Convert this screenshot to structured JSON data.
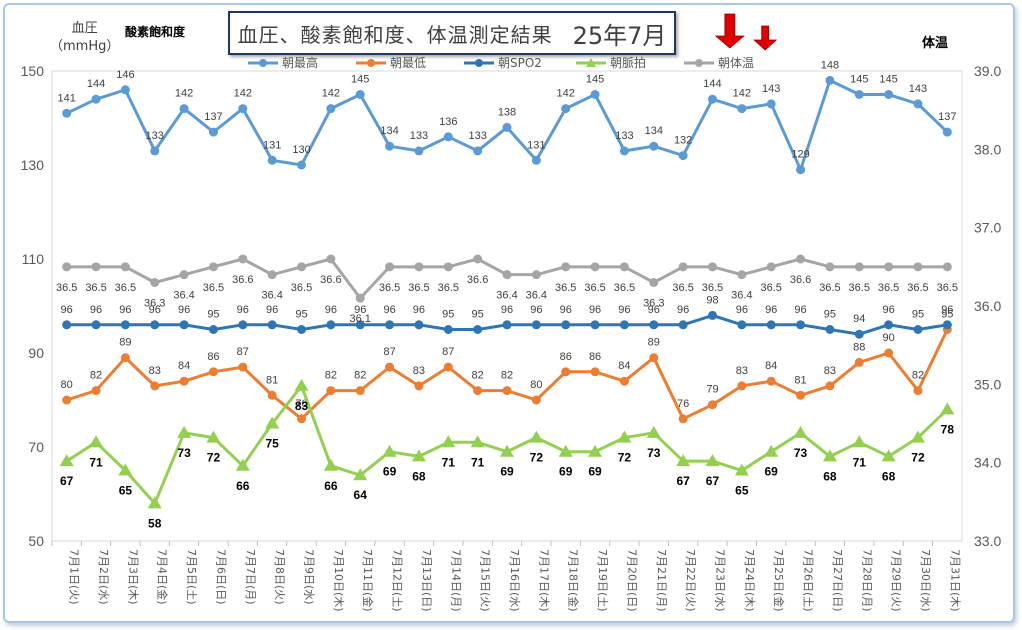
{
  "title": {
    "main": "血圧、酸素飽和度、体温測定結果",
    "date": "25年7月"
  },
  "axis_labels": {
    "left_line1": "血圧",
    "left_line2": "（mmHg）",
    "spo2": "酸素飽和度",
    "right": "体温"
  },
  "chart_data": {
    "type": "line",
    "categories": [
      "7月1日(火)",
      "7月2日(水)",
      "7月3日(木)",
      "7月4日(金)",
      "7月5日(土)",
      "7月6日(日)",
      "7月7日(月)",
      "7月8日(火)",
      "7月9日(水)",
      "7月10日(木)",
      "7月11日(金)",
      "7月12日(土)",
      "7月13日(日)",
      "7月14日(月)",
      "7月15日(火)",
      "7月16日(水)",
      "7月17日(木)",
      "7月18日(金)",
      "7月19日(土)",
      "7月20日(日)",
      "7月21日(月)",
      "7月22日(火)",
      "7月23日(水)",
      "7月24日(木)",
      "7月25日(金)",
      "7月26日(土)",
      "7月27日(日)",
      "7月28日(月)",
      "7月29日(火)",
      "7月30日(水)",
      "7月31日(木)"
    ],
    "left_axis": {
      "min": 50,
      "max": 150,
      "ticks": [
        50,
        70,
        90,
        110,
        130,
        150
      ]
    },
    "right_axis": {
      "min": 33.0,
      "max": 39.0,
      "ticks": [
        "33.0",
        "34.0",
        "35.0",
        "36.0",
        "37.0",
        "38.0",
        "39.0"
      ]
    },
    "legend_position": "top",
    "series": [
      {
        "name": "朝最高",
        "axis": "left",
        "color": "#5b9bd5",
        "marker": "circle",
        "values": [
          141,
          144,
          146,
          133,
          142,
          137,
          142,
          131,
          130,
          142,
          145,
          134,
          133,
          136,
          133,
          138,
          131,
          142,
          145,
          133,
          134,
          132,
          144,
          142,
          143,
          129,
          148,
          145,
          145,
          143,
          137
        ]
      },
      {
        "name": "朝最低",
        "axis": "left",
        "color": "#ed7d31",
        "marker": "circle",
        "values": [
          80,
          82,
          89,
          83,
          84,
          86,
          87,
          81,
          76,
          82,
          82,
          87,
          83,
          87,
          82,
          82,
          80,
          86,
          86,
          84,
          89,
          76,
          79,
          83,
          84,
          81,
          83,
          88,
          90,
          82,
          95
        ]
      },
      {
        "name": "朝SPO2",
        "axis": "left",
        "color": "#2e75b6",
        "marker": "circle",
        "values": [
          96,
          96,
          96,
          96,
          96,
          95,
          96,
          96,
          95,
          96,
          96,
          96,
          96,
          95,
          95,
          96,
          96,
          96,
          96,
          96,
          96,
          96,
          98,
          96,
          96,
          96,
          95,
          94,
          96,
          95,
          96
        ]
      },
      {
        "name": "朝脈拍",
        "axis": "left",
        "color": "#92d050",
        "marker": "triangle",
        "values": [
          67,
          71,
          65,
          58,
          73,
          72,
          66,
          75,
          83,
          66,
          64,
          69,
          68,
          71,
          71,
          69,
          72,
          69,
          69,
          72,
          73,
          67,
          67,
          65,
          69,
          73,
          68,
          71,
          68,
          72,
          78
        ]
      },
      {
        "name": "朝体温",
        "axis": "right",
        "color": "#a5a5a5",
        "marker": "circle",
        "values": [
          36.5,
          36.5,
          36.5,
          36.3,
          36.4,
          36.5,
          36.6,
          36.4,
          36.5,
          36.6,
          36.1,
          36.5,
          36.5,
          36.5,
          36.6,
          36.4,
          36.4,
          36.5,
          36.5,
          36.5,
          36.3,
          36.5,
          36.5,
          36.4,
          36.5,
          36.6,
          36.5,
          36.5,
          36.5,
          36.5,
          36.5
        ],
        "labels": [
          "36.5",
          "36.5",
          "36.5",
          "36.3",
          "36.4",
          "36.5",
          "36.6",
          "36.4",
          "36.5",
          "36.6",
          "36.1",
          "36.5",
          "36.5",
          "36.5",
          "36.6",
          "36.4",
          "36.4",
          "36.5",
          "36.5",
          "36.5",
          "36.3",
          "36.5",
          "36.5",
          "36.4",
          "36.5",
          "36.6",
          "36.5",
          "36.5",
          "36.5",
          "36.5",
          "36.5"
        ]
      }
    ],
    "annotations": [
      {
        "type": "arrow-down",
        "color": "#e00000",
        "category_index": 23
      },
      {
        "type": "arrow-down",
        "color": "#e00000",
        "category_index": 24
      }
    ]
  }
}
